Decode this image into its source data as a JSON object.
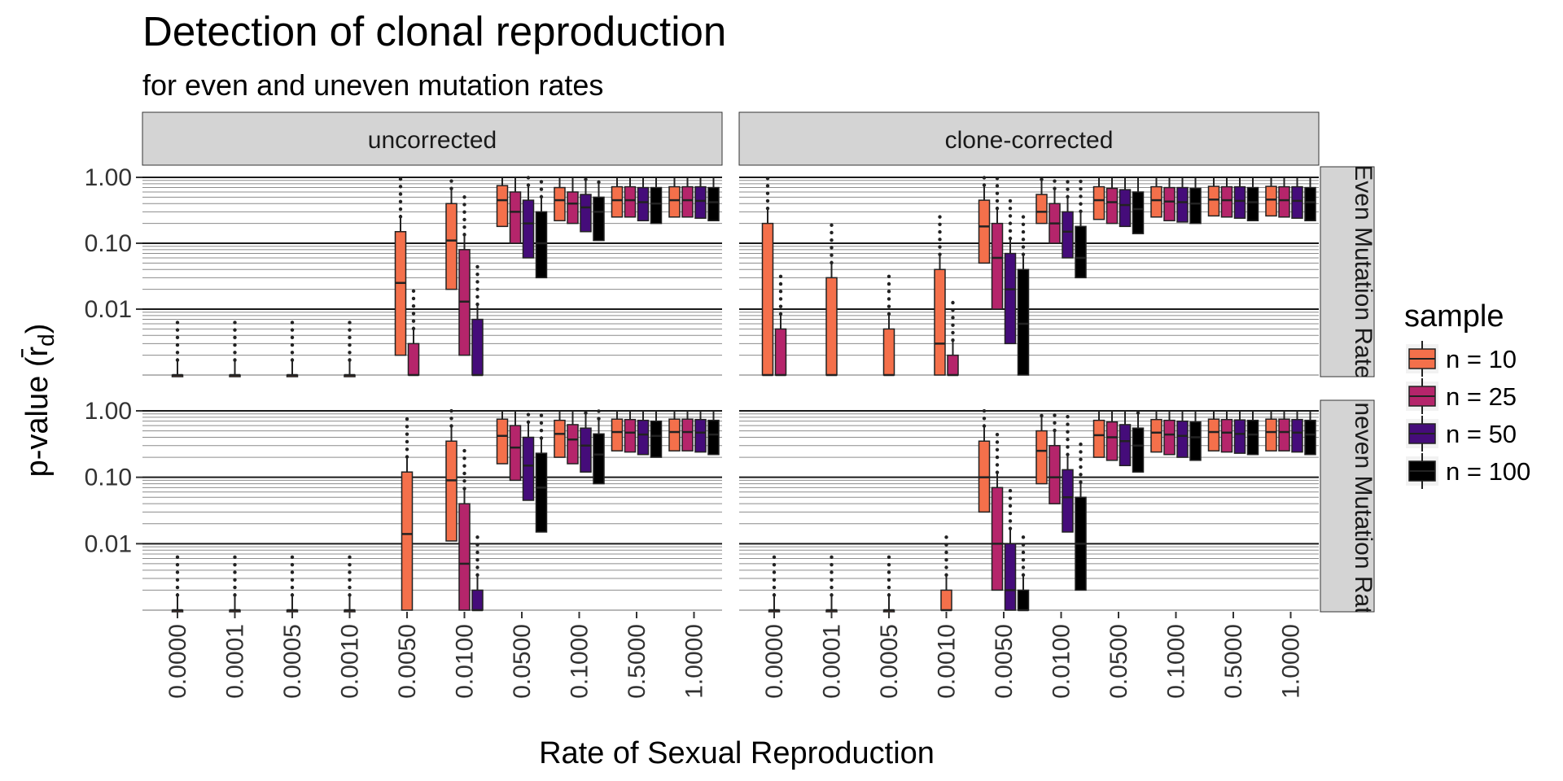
{
  "chart_data": {
    "type": "box",
    "title": "Detection of clonal reproduction",
    "subtitle": "for even and uneven mutation rates",
    "xlabel": "Rate of Sexual Reproduction",
    "ylabel": "p-value (r̄",
    "ylabel_sub": "d",
    "ylabel_close": ")",
    "y_scale": "log10",
    "ylim": [
      0.001,
      1
    ],
    "y_ticks": [
      "1.00",
      "0.10",
      "0.01"
    ],
    "categories": [
      "0.0000",
      "0.0001",
      "0.0005",
      "0.0010",
      "0.0050",
      "0.0100",
      "0.0500",
      "0.1000",
      "0.5000",
      "1.0000"
    ],
    "columns": [
      "uncorrected",
      "clone-corrected"
    ],
    "rows": [
      "Even Mutation Rate",
      "Uneven Mutation Rate"
    ],
    "legend": {
      "title": "sample",
      "position": "right",
      "items": [
        {
          "label": "n = 10",
          "color": "#F4704B"
        },
        {
          "label": "n = 25",
          "color": "#B5256B"
        },
        {
          "label": "n = 50",
          "color": "#450C7A"
        },
        {
          "label": "n = 100",
          "color": "#000000"
        }
      ]
    },
    "panels": [
      {
        "row": 0,
        "col": 0,
        "boxes": [
          [
            [
              0.001,
              0.001,
              0.001
            ]
          ],
          [
            [
              0.001,
              0.001,
              0.001
            ]
          ],
          [
            [
              0.001,
              0.001,
              0.001
            ]
          ],
          [
            [
              0.001,
              0.001,
              0.001
            ]
          ],
          [
            [
              0.002,
              0.025,
              0.15
            ],
            [
              0.001,
              0.001,
              0.003
            ]
          ],
          [
            [
              0.02,
              0.11,
              0.4
            ],
            [
              0.002,
              0.013,
              0.08
            ],
            [
              0.001,
              0.001,
              0.007
            ]
          ],
          [
            [
              0.18,
              0.45,
              0.75
            ],
            [
              0.1,
              0.3,
              0.6
            ],
            [
              0.06,
              0.2,
              0.45
            ],
            [
              0.03,
              0.1,
              0.3
            ]
          ],
          [
            [
              0.22,
              0.45,
              0.7
            ],
            [
              0.2,
              0.4,
              0.6
            ],
            [
              0.15,
              0.35,
              0.55
            ],
            [
              0.11,
              0.3,
              0.5
            ]
          ],
          [
            [
              0.25,
              0.45,
              0.72
            ],
            [
              0.25,
              0.45,
              0.72
            ],
            [
              0.22,
              0.42,
              0.7
            ],
            [
              0.2,
              0.4,
              0.7
            ]
          ],
          [
            [
              0.25,
              0.45,
              0.72
            ],
            [
              0.25,
              0.45,
              0.72
            ],
            [
              0.24,
              0.44,
              0.72
            ],
            [
              0.22,
              0.42,
              0.7
            ]
          ]
        ]
      },
      {
        "row": 0,
        "col": 1,
        "boxes": [
          [
            [
              0.001,
              0.001,
              0.2
            ],
            [
              0.001,
              0.001,
              0.005
            ]
          ],
          [
            [
              0.001,
              0.001,
              0.03
            ]
          ],
          [
            [
              0.001,
              0.001,
              0.005
            ]
          ],
          [
            [
              0.001,
              0.003,
              0.04
            ],
            [
              0.001,
              0.001,
              0.002
            ]
          ],
          [
            [
              0.05,
              0.18,
              0.45
            ],
            [
              0.01,
              0.06,
              0.2
            ],
            [
              0.003,
              0.02,
              0.07
            ],
            [
              0.001,
              0.006,
              0.04
            ]
          ],
          [
            [
              0.2,
              0.3,
              0.55
            ],
            [
              0.1,
              0.2,
              0.4
            ],
            [
              0.06,
              0.15,
              0.3
            ],
            [
              0.03,
              0.06,
              0.18
            ]
          ],
          [
            [
              0.23,
              0.45,
              0.72
            ],
            [
              0.2,
              0.42,
              0.68
            ],
            [
              0.18,
              0.38,
              0.65
            ],
            [
              0.14,
              0.33,
              0.6
            ]
          ],
          [
            [
              0.25,
              0.45,
              0.72
            ],
            [
              0.22,
              0.43,
              0.7
            ],
            [
              0.21,
              0.42,
              0.7
            ],
            [
              0.2,
              0.4,
              0.68
            ]
          ],
          [
            [
              0.26,
              0.46,
              0.73
            ],
            [
              0.25,
              0.45,
              0.72
            ],
            [
              0.24,
              0.44,
              0.72
            ],
            [
              0.22,
              0.42,
              0.7
            ]
          ],
          [
            [
              0.26,
              0.46,
              0.73
            ],
            [
              0.25,
              0.45,
              0.72
            ],
            [
              0.24,
              0.44,
              0.72
            ],
            [
              0.22,
              0.42,
              0.7
            ]
          ]
        ]
      },
      {
        "row": 1,
        "col": 0,
        "boxes": [
          [
            [
              0.001,
              0.001,
              0.001
            ]
          ],
          [
            [
              0.001,
              0.001,
              0.001
            ]
          ],
          [
            [
              0.001,
              0.001,
              0.001
            ]
          ],
          [
            [
              0.001,
              0.001,
              0.001
            ]
          ],
          [
            [
              0.001,
              0.014,
              0.12
            ]
          ],
          [
            [
              0.011,
              0.09,
              0.35
            ],
            [
              0.001,
              0.005,
              0.04
            ],
            [
              0.001,
              0.001,
              0.002
            ]
          ],
          [
            [
              0.16,
              0.42,
              0.75
            ],
            [
              0.09,
              0.28,
              0.6
            ],
            [
              0.045,
              0.15,
              0.4
            ],
            [
              0.015,
              0.07,
              0.23
            ]
          ],
          [
            [
              0.2,
              0.45,
              0.72
            ],
            [
              0.16,
              0.37,
              0.62
            ],
            [
              0.12,
              0.3,
              0.55
            ],
            [
              0.08,
              0.22,
              0.45
            ]
          ],
          [
            [
              0.25,
              0.48,
              0.75
            ],
            [
              0.24,
              0.47,
              0.74
            ],
            [
              0.22,
              0.44,
              0.72
            ],
            [
              0.2,
              0.42,
              0.7
            ]
          ],
          [
            [
              0.25,
              0.48,
              0.75
            ],
            [
              0.25,
              0.48,
              0.75
            ],
            [
              0.24,
              0.47,
              0.74
            ],
            [
              0.22,
              0.44,
              0.72
            ]
          ]
        ]
      },
      {
        "row": 1,
        "col": 1,
        "boxes": [
          [
            [
              0.001,
              0.001,
              0.001
            ]
          ],
          [
            [
              0.001,
              0.001,
              0.001
            ]
          ],
          [
            [
              0.001,
              0.001,
              0.001
            ]
          ],
          [
            [
              0.001,
              0.001,
              0.002
            ]
          ],
          [
            [
              0.03,
              0.1,
              0.35
            ],
            [
              0.002,
              0.01,
              0.07
            ],
            [
              0.001,
              0.002,
              0.01
            ],
            [
              0.001,
              0.001,
              0.002
            ]
          ],
          [
            [
              0.08,
              0.25,
              0.5
            ],
            [
              0.04,
              0.1,
              0.3
            ],
            [
              0.015,
              0.05,
              0.13
            ],
            [
              0.002,
              0.01,
              0.05
            ]
          ],
          [
            [
              0.2,
              0.43,
              0.72
            ],
            [
              0.18,
              0.4,
              0.68
            ],
            [
              0.15,
              0.35,
              0.62
            ],
            [
              0.12,
              0.3,
              0.55
            ]
          ],
          [
            [
              0.24,
              0.47,
              0.74
            ],
            [
              0.22,
              0.44,
              0.72
            ],
            [
              0.2,
              0.42,
              0.7
            ],
            [
              0.18,
              0.4,
              0.68
            ]
          ],
          [
            [
              0.25,
              0.48,
              0.75
            ],
            [
              0.24,
              0.47,
              0.74
            ],
            [
              0.23,
              0.45,
              0.73
            ],
            [
              0.22,
              0.44,
              0.72
            ]
          ],
          [
            [
              0.25,
              0.48,
              0.75
            ],
            [
              0.25,
              0.48,
              0.75
            ],
            [
              0.24,
              0.47,
              0.74
            ],
            [
              0.22,
              0.44,
              0.72
            ]
          ]
        ]
      }
    ]
  }
}
